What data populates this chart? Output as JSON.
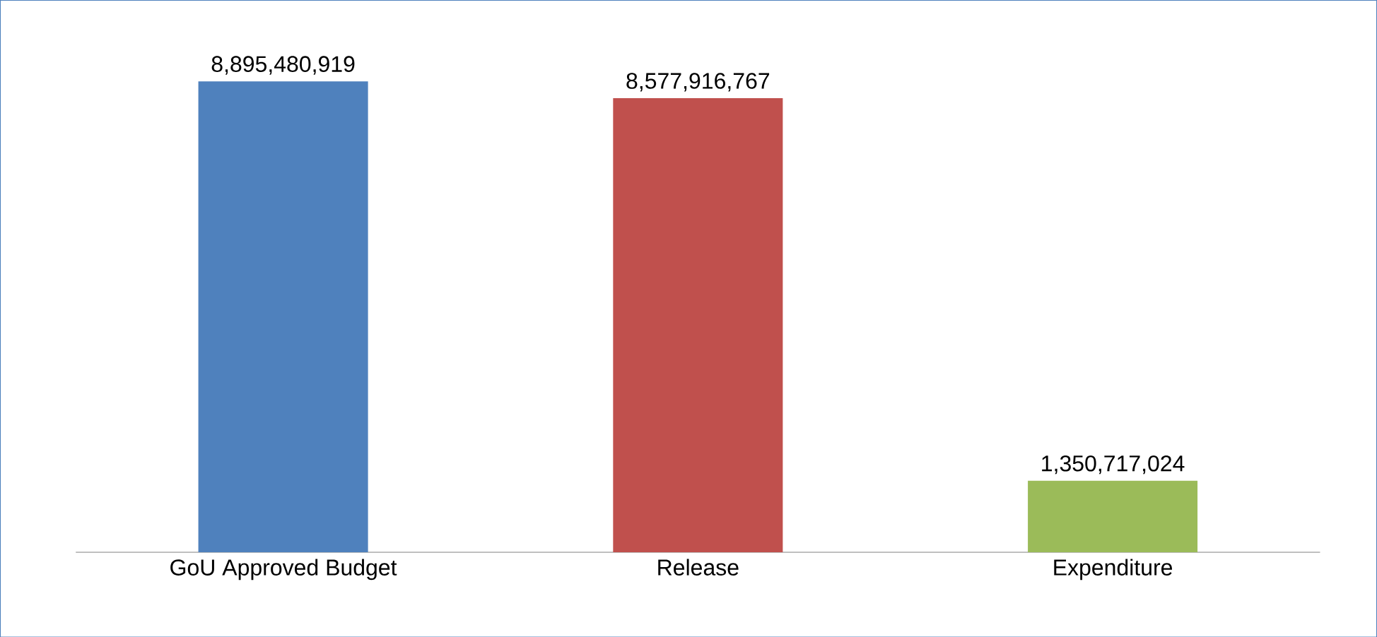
{
  "chart_data": {
    "type": "bar",
    "categories": [
      "GoU Approved Budget",
      "Release",
      "Expenditure"
    ],
    "values": [
      8895480919,
      8577916767,
      1350717024
    ],
    "colors": [
      "#4f81bd",
      "#c0504d",
      "#9bbb59"
    ],
    "value_labels": [
      "8,895,480,919",
      "8,577,916,767",
      "1,350,717,024"
    ]
  }
}
